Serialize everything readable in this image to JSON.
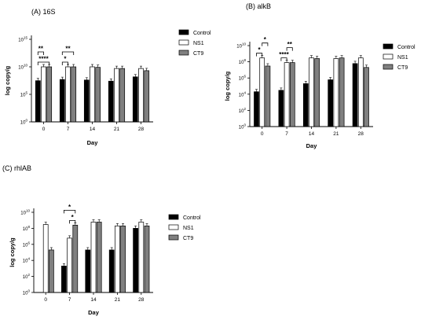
{
  "colors": {
    "control": "#000000",
    "ns1": "#ffffff",
    "ct9": "#808080",
    "stroke": "#000000"
  },
  "chart_data": [
    {
      "type": "bar",
      "title": "(A) 16S",
      "xlabel": "Day",
      "ylabel": "log copy/g",
      "yscale": "log",
      "ylim": [
        1,
        1000000000000000.0
      ],
      "yticks": [
        {
          "value": 1,
          "label": "10",
          "exp": "0"
        },
        {
          "value": 100000.0,
          "label": "10",
          "exp": "5"
        },
        {
          "value": 10000000000.0,
          "label": "10",
          "exp": "10"
        },
        {
          "value": 1000000000000000.0,
          "label": "10",
          "exp": "15"
        }
      ],
      "categories": [
        "0",
        "7",
        "14",
        "21",
        "28"
      ],
      "legend": [
        "Control",
        "NS1",
        "CT9"
      ],
      "series": [
        {
          "name": "Control",
          "values": [
            30000000.0,
            50000000.0,
            40000000.0,
            25000000.0,
            150000000.0
          ]
        },
        {
          "name": "NS1",
          "values": [
            10000000000.0,
            10000000000.0,
            10000000000.0,
            5000000000.0,
            5000000000.0
          ]
        },
        {
          "name": "CT9",
          "values": [
            10000000000.0,
            10000000000.0,
            8000000000.0,
            5000000000.0,
            2000000000.0
          ]
        }
      ],
      "significance": [
        {
          "label": "**",
          "from": [
            0,
            0
          ],
          "to": [
            0,
            1
          ],
          "level": 2
        },
        {
          "label": "****",
          "from": [
            0,
            0
          ],
          "to": [
            0,
            2
          ],
          "level": 1
        },
        {
          "label": "**",
          "from": [
            1,
            0
          ],
          "to": [
            1,
            2
          ],
          "level": 2
        },
        {
          "label": "*",
          "from": [
            1,
            0
          ],
          "to": [
            1,
            1
          ],
          "level": 1
        }
      ]
    },
    {
      "type": "bar",
      "title": "(B) alkB",
      "xlabel": "Day",
      "ylabel": "log copy/g",
      "yscale": "log",
      "ylim": [
        1,
        10000000000.0
      ],
      "yticks": [
        {
          "value": 1,
          "label": "10",
          "exp": "0"
        },
        {
          "value": 100,
          "label": "10",
          "exp": "2"
        },
        {
          "value": 10000.0,
          "label": "10",
          "exp": "4"
        },
        {
          "value": 1000000.0,
          "label": "10",
          "exp": "6"
        },
        {
          "value": 100000000.0,
          "label": "10",
          "exp": "8"
        },
        {
          "value": 10000000000.0,
          "label": "10",
          "exp": "10"
        }
      ],
      "categories": [
        "0",
        "7",
        "14",
        "21",
        "28"
      ],
      "legend": [
        "Control",
        "NS1",
        "CT9"
      ],
      "series": [
        {
          "name": "Control",
          "values": [
            20000.0,
            30000.0,
            200000.0,
            600000.0,
            60000000.0
          ]
        },
        {
          "name": "NS1",
          "values": [
            300000000.0,
            80000000.0,
            300000000.0,
            250000000.0,
            300000000.0
          ]
        },
        {
          "name": "CT9",
          "values": [
            30000000.0,
            80000000.0,
            250000000.0,
            300000000.0,
            20000000.0
          ]
        }
      ],
      "significance": [
        {
          "label": "*",
          "from": [
            0,
            0
          ],
          "to": [
            0,
            1
          ],
          "level": 1
        },
        {
          "label": "*",
          "from": [
            0,
            1
          ],
          "to": [
            0,
            2
          ],
          "level": 2
        },
        {
          "label": "****",
          "from": [
            1,
            0
          ],
          "to": [
            1,
            1
          ],
          "level": 1
        },
        {
          "label": "**",
          "from": [
            1,
            1
          ],
          "to": [
            1,
            2
          ],
          "level": 2
        }
      ]
    },
    {
      "type": "bar",
      "title": "(C) rhlAB",
      "xlabel": "Day",
      "ylabel": "log copy/g",
      "yscale": "log",
      "ylim": [
        1,
        10000000000.0
      ],
      "yticks": [
        {
          "value": 1,
          "label": "10",
          "exp": "0"
        },
        {
          "value": 100,
          "label": "10",
          "exp": "2"
        },
        {
          "value": 10000.0,
          "label": "10",
          "exp": "4"
        },
        {
          "value": 1000000.0,
          "label": "10",
          "exp": "6"
        },
        {
          "value": 100000000.0,
          "label": "10",
          "exp": "8"
        },
        {
          "value": 10000000000.0,
          "label": "10",
          "exp": "10"
        }
      ],
      "categories": [
        "0",
        "7",
        "14",
        "21",
        "28"
      ],
      "legend": [
        "Control",
        "NS1",
        "CT9"
      ],
      "series": [
        {
          "name": "Control",
          "values": [
            null,
            2000.0,
            200000.0,
            200000.0,
            100000000.0
          ]
        },
        {
          "name": "NS1",
          "values": [
            300000000.0,
            6000000.0,
            600000000.0,
            200000000.0,
            600000000.0
          ]
        },
        {
          "name": "CT9",
          "values": [
            200000.0,
            250000000.0,
            600000000.0,
            200000000.0,
            200000000.0
          ]
        }
      ],
      "significance": [
        {
          "label": "*",
          "from": [
            1,
            0
          ],
          "to": [
            1,
            2
          ],
          "level": 2
        },
        {
          "label": "*",
          "from": [
            1,
            1
          ],
          "to": [
            1,
            2
          ],
          "level": 1
        }
      ]
    }
  ]
}
